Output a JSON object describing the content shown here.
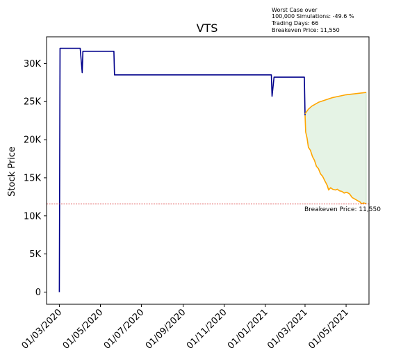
{
  "chart_data": {
    "type": "line",
    "title": "VTS",
    "xlabel": "",
    "ylabel": "Stock Price",
    "x_tick_labels": [
      "01/03/2020",
      "01/05/2020",
      "01/07/2020",
      "01/09/2020",
      "01/11/2020",
      "01/01/2021",
      "01/03/2021",
      "01/05/2021"
    ],
    "x_ticks": [
      "2020-03-01",
      "2020-05-01",
      "2020-07-01",
      "2020-09-01",
      "2020-11-01",
      "2021-01-01",
      "2021-03-01",
      "2021-05-01"
    ],
    "xlim": [
      "2020-02-11",
      "2021-06-04"
    ],
    "ylim": [
      -1600,
      33500
    ],
    "y_ticks": [
      0,
      5000,
      10000,
      15000,
      20000,
      25000,
      30000
    ],
    "y_tick_labels": [
      "0",
      "5K",
      "10K",
      "15K",
      "20K",
      "25K",
      "30K"
    ],
    "grid": false,
    "historical": {
      "color": "#00008b",
      "points": [
        [
          "2020-03-01",
          0
        ],
        [
          "2020-03-02",
          32000
        ],
        [
          "2020-04-01",
          32000
        ],
        [
          "2020-04-04",
          28800
        ],
        [
          "2020-04-05",
          31600
        ],
        [
          "2020-05-21",
          31600
        ],
        [
          "2020-05-22",
          28500
        ],
        [
          "2021-01-10",
          28500
        ],
        [
          "2021-01-11",
          25700
        ],
        [
          "2021-01-14",
          28200
        ],
        [
          "2021-02-28",
          28200
        ],
        [
          "2021-03-01",
          23200
        ]
      ]
    },
    "best_case": {
      "color": "#ffa500",
      "points": [
        [
          "2021-03-01",
          23400
        ],
        [
          "2021-03-06",
          24000
        ],
        [
          "2021-03-11",
          24400
        ],
        [
          "2021-03-21",
          24900
        ],
        [
          "2021-03-31",
          25200
        ],
        [
          "2021-04-10",
          25500
        ],
        [
          "2021-04-20",
          25700
        ],
        [
          "2021-05-01",
          25900
        ],
        [
          "2021-05-11",
          26000
        ],
        [
          "2021-05-21",
          26100
        ],
        [
          "2021-05-31",
          26200
        ]
      ]
    },
    "worst_case": {
      "color": "#ffa500",
      "points": [
        [
          "2021-03-01",
          23200
        ],
        [
          "2021-03-02",
          21000
        ],
        [
          "2021-03-04",
          20200
        ],
        [
          "2021-03-06",
          19000
        ],
        [
          "2021-03-09",
          18600
        ],
        [
          "2021-03-12",
          17800
        ],
        [
          "2021-03-15",
          17300
        ],
        [
          "2021-03-18",
          16500
        ],
        [
          "2021-03-21",
          16200
        ],
        [
          "2021-03-24",
          15500
        ],
        [
          "2021-03-27",
          15200
        ],
        [
          "2021-03-31",
          14500
        ],
        [
          "2021-04-03",
          14000
        ],
        [
          "2021-04-05",
          13400
        ],
        [
          "2021-04-08",
          13700
        ],
        [
          "2021-04-11",
          13500
        ],
        [
          "2021-04-15",
          13400
        ],
        [
          "2021-04-18",
          13500
        ],
        [
          "2021-04-21",
          13300
        ],
        [
          "2021-04-25",
          13200
        ],
        [
          "2021-04-28",
          13000
        ],
        [
          "2021-05-02",
          13100
        ],
        [
          "2021-05-06",
          12900
        ],
        [
          "2021-05-10",
          12400
        ],
        [
          "2021-05-14",
          12200
        ],
        [
          "2021-05-18",
          12000
        ],
        [
          "2021-05-22",
          11800
        ],
        [
          "2021-05-24",
          11600
        ],
        [
          "2021-05-27",
          11700
        ],
        [
          "2021-05-31",
          11600
        ]
      ]
    },
    "fill_color": "#2ca02c",
    "breakeven": {
      "value": 11550,
      "color": "#d62728",
      "label": "Breakeven Price: 11,550"
    },
    "summary_lines": [
      "Worst Case over",
      "100,000 Simulations: -49.6 %",
      "Trading Days: 66",
      "Breakeven Price: 11,550"
    ]
  }
}
